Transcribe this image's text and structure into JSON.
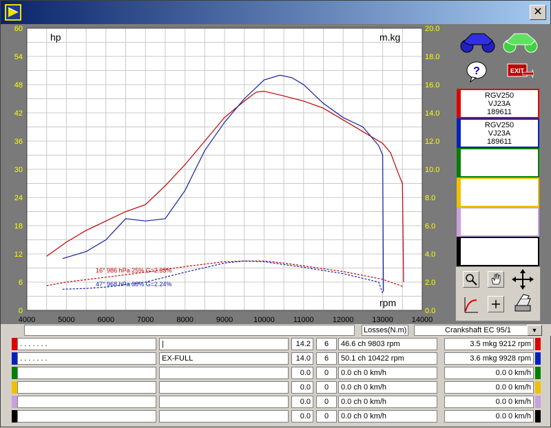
{
  "window": {
    "close_glyph": "✕"
  },
  "chart_data": {
    "type": "line",
    "x_ticks": [
      "4000",
      "5000",
      "6000",
      "7000",
      "8000",
      "9000",
      "10000",
      "11000",
      "12000",
      "13000",
      "14000"
    ],
    "y_left_ticks": [
      "0",
      "6",
      "12",
      "18",
      "24",
      "30",
      "36",
      "42",
      "48",
      "54",
      "60"
    ],
    "y_right_ticks": [
      "0.0",
      "2.0",
      "4.0",
      "6.0",
      "8.0",
      "10.0",
      "12.0",
      "14.0",
      "16.0",
      "18.0",
      "20.0"
    ],
    "xlim": [
      4000,
      14000
    ],
    "ylim_left": [
      0,
      60
    ],
    "ylim_right": [
      0,
      20
    ],
    "left_unit": "hp",
    "right_unit": "m.kg",
    "x_unit": "rpm",
    "series": [
      {
        "axis": "hp",
        "color": "#c00000",
        "x": [
          4500,
          5000,
          5500,
          6000,
          6500,
          7000,
          7500,
          8000,
          8500,
          9000,
          9500,
          9800,
          10000,
          10500,
          11000,
          11500,
          12000,
          12500,
          13000,
          13200,
          13400,
          13500,
          13530
        ],
        "values": [
          11.5,
          14.5,
          17,
          19,
          21,
          22.5,
          26.5,
          31,
          36,
          41,
          44.5,
          46.4,
          46.6,
          45.6,
          44.5,
          43,
          40.5,
          38,
          35.5,
          33.5,
          29,
          27,
          6
        ]
      },
      {
        "axis": "hp",
        "color": "#1020a0",
        "x": [
          4900,
          5500,
          6000,
          6500,
          7000,
          7500,
          8000,
          8500,
          9000,
          9500,
          10000,
          10400,
          10700,
          11000,
          11500,
          12000,
          12500,
          12900,
          13000,
          13020
        ],
        "values": [
          11,
          12.5,
          15,
          19.5,
          19,
          19.5,
          25.5,
          34,
          40,
          45,
          49,
          50,
          49.5,
          48,
          44,
          41,
          39,
          35,
          33,
          4
        ]
      },
      {
        "axis": "m.kg",
        "color": "#c00000",
        "dashed": true,
        "x": [
          4500,
          5000,
          6000,
          7000,
          8000,
          9000,
          9500,
          10000,
          10500,
          11000,
          12000,
          13000,
          13500
        ],
        "values": [
          1.75,
          2.0,
          2.35,
          2.7,
          3.1,
          3.45,
          3.5,
          3.5,
          3.35,
          3.15,
          2.75,
          2.2,
          1.7
        ]
      },
      {
        "axis": "m.kg",
        "color": "#1020a0",
        "dashed": true,
        "x": [
          4900,
          5500,
          6000,
          7000,
          8000,
          9000,
          9500,
          10000,
          10500,
          11000,
          12000,
          12900,
          13000
        ],
        "values": [
          1.5,
          1.55,
          1.65,
          2.0,
          2.7,
          3.35,
          3.5,
          3.45,
          3.25,
          3.05,
          2.6,
          2.0,
          1.2
        ]
      }
    ],
    "conditions": [
      {
        "text": "16° 986 hPa  25%    G=2.33%",
        "color": "#c00000"
      },
      {
        "text": "47° 968 hPa  38%    G=2.24%",
        "color": "#1020a0"
      }
    ]
  },
  "slots": [
    {
      "color": "#e00000",
      "lines": [
        "RGV250",
        "VJ23A",
        "189611"
      ]
    },
    {
      "color": "#0020c0",
      "lines": [
        "RGV250",
        "VJ23A",
        "189611"
      ]
    },
    {
      "color": "#008000",
      "lines": []
    },
    {
      "color": "#f0c000",
      "lines": []
    },
    {
      "color": "#c8a0e0",
      "lines": []
    },
    {
      "color": "#000000",
      "lines": []
    }
  ],
  "controls": {
    "losses": "Losses(N.m)",
    "crankshaft": "Crankshaft EC 95/1",
    "exit_label": "EXIT",
    "help_glyph": "?"
  },
  "rows": [
    {
      "color": "#e00000",
      "name": ". . . . . . .",
      "tag": "|",
      "v1": "14.2",
      "v2": "6",
      "power": "46.6 ch 9803 rpm",
      "torque": "3.5 mkg 9212 rpm"
    },
    {
      "color": "#0020c0",
      "name": ". . . . . . .",
      "tag": "EX-FULL",
      "v1": "14.0",
      "v2": "6",
      "power": "50.1 ch 10422 rpm",
      "torque": "3.6 mkg 9928 rpm"
    },
    {
      "color": "#008000",
      "name": "",
      "tag": "",
      "v1": "0.0",
      "v2": "0",
      "power": "0.0 ch 0 km/h",
      "torque": "0.0   0 km/h"
    },
    {
      "color": "#f0c000",
      "name": "",
      "tag": "",
      "v1": "0.0",
      "v2": "0",
      "power": "0.0 ch 0 km/h",
      "torque": "0.0   0 km/h"
    },
    {
      "color": "#c8a0e0",
      "name": "",
      "tag": "",
      "v1": "0.0",
      "v2": "0",
      "power": "0.0 ch 0 km/h",
      "torque": "0.0   0 km/h"
    },
    {
      "color": "#000000",
      "name": "",
      "tag": "",
      "v1": "0.0",
      "v2": "0",
      "power": "0.0 ch 0 km/h",
      "torque": "0.0   0 km/h"
    }
  ]
}
